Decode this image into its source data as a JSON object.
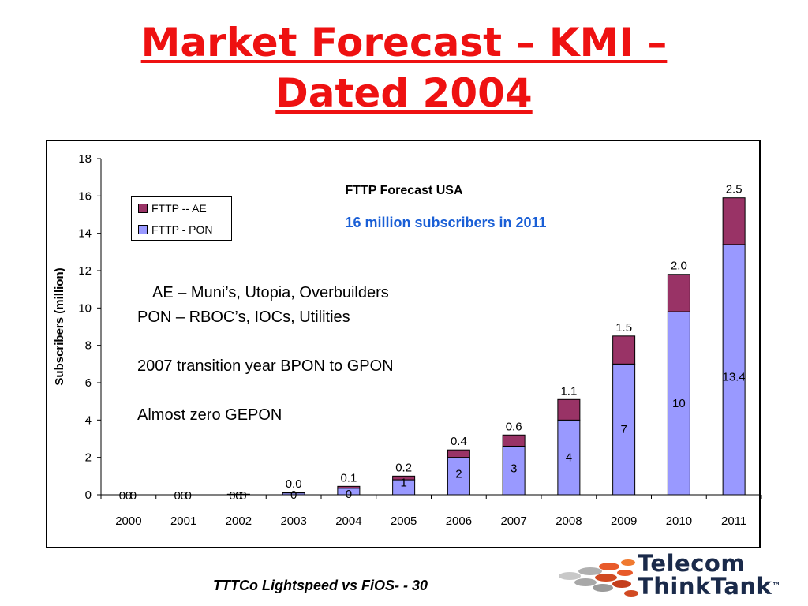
{
  "slide": {
    "title_line1": "Market Forecast – KMI –",
    "title_line2": "Dated 2004",
    "footer": "TTTCo Lightspeed vs FiOS- - 30"
  },
  "notes": {
    "line1": "AE – Muni’s, Utopia, Overbuilders",
    "line2": "PON – RBOC’s, IOCs, Utilities",
    "line3": "2007 transition year BPON to GPON",
    "line4": "Almost zero GEPON"
  },
  "logo": {
    "line1": "Telecom",
    "line2": "ThinkTank",
    "mark": "™"
  },
  "colors": {
    "title": "#ee1111",
    "ae": "#993366",
    "pon": "#9999ff",
    "subtitle": "#1a5fd6"
  },
  "chart_data": {
    "type": "bar",
    "stacked": true,
    "title": "FTTP Forecast USA",
    "subtitle": "16 million subscribers in 2011",
    "xlabel": "",
    "ylabel": "Subscribers (million)",
    "ylim": [
      0,
      18
    ],
    "yticks": [
      "0",
      "2",
      "4",
      "6",
      "8",
      "10",
      "12",
      "14",
      "16",
      "18"
    ],
    "categories": [
      "2000",
      "2001",
      "2002",
      "2003",
      "2004",
      "2005",
      "2006",
      "2007",
      "2008",
      "2009",
      "2010",
      "2011"
    ],
    "legend": {
      "position": "top-left"
    },
    "series": [
      {
        "name": "FTTP - PON",
        "values": [
          0,
          0,
          0.02,
          0.1,
          0.35,
          0.8,
          2,
          2.6,
          4,
          7,
          9.8,
          13.4
        ],
        "labels": [
          "0",
          "0",
          "0",
          "0",
          "0",
          "1",
          "2",
          "3",
          "4",
          "7",
          "10",
          "13.4"
        ]
      },
      {
        "name": "FTTP -- AE",
        "values": [
          0,
          0,
          0.01,
          0.02,
          0.1,
          0.2,
          0.4,
          0.6,
          1.1,
          1.5,
          2.0,
          2.5
        ],
        "labels": [
          "0",
          "0",
          "0",
          "0.0",
          "0.1",
          "0.2",
          "0.4",
          "0.6",
          "1.1",
          "1.5",
          "2.0",
          "2.5"
        ]
      }
    ]
  }
}
